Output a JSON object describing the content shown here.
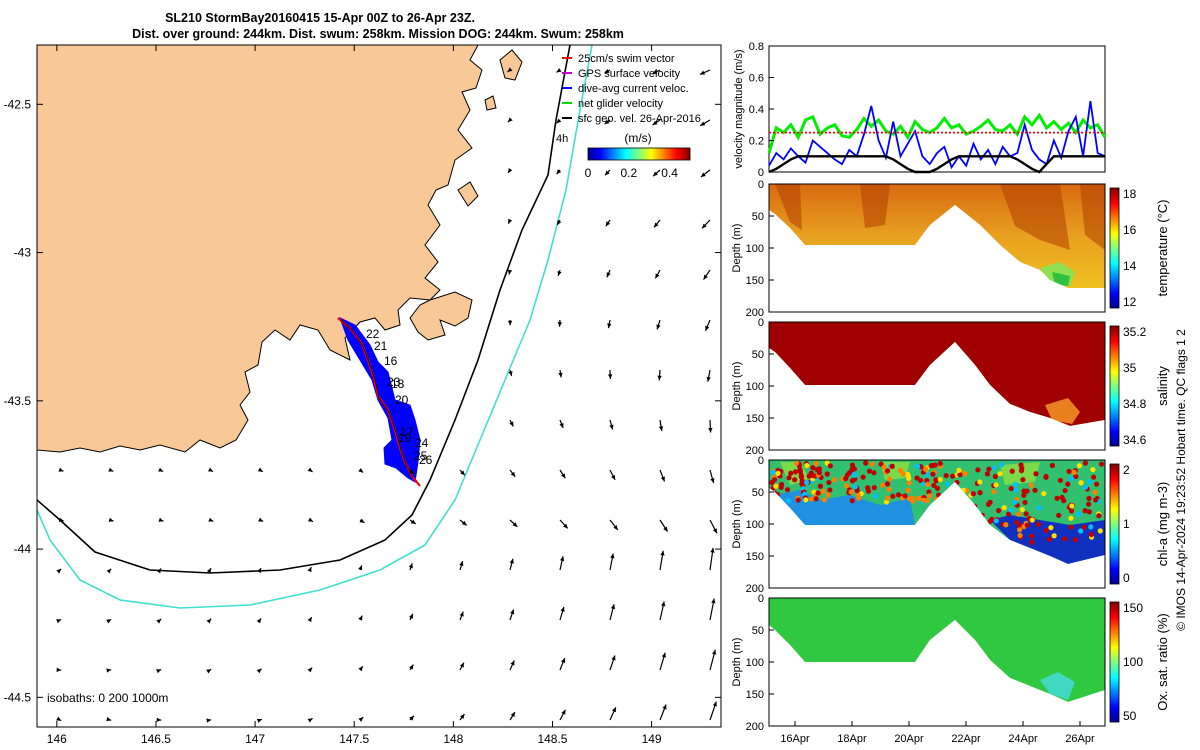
{
  "title": {
    "line1": "SL210 StormBay20160415 15-Apr 00Z to 26-Apr 23Z.",
    "line2": "Dist. over ground: 244km. Dist. swum: 258km. Mission DOG: 244km. Swum: 258km"
  },
  "map": {
    "x_ticks": [
      "146",
      "146.5",
      "147",
      "147.5",
      "148",
      "148.5",
      "149"
    ],
    "y_ticks": [
      "-42.5",
      "-43",
      "-43.5",
      "-44",
      "-44.5"
    ],
    "xlim": [
      145.9,
      149.35
    ],
    "ylim": [
      -44.6,
      -42.3
    ],
    "isobaths_label": "isobaths: 0   200  1000m",
    "legend": [
      {
        "label": "25cm/s swim vector",
        "color": "#ff0000"
      },
      {
        "label": "GPS surface velocity",
        "color": "#cc00cc"
      },
      {
        "label": "dive-avg current veloc.",
        "color": "#0000ff"
      },
      {
        "label": "net glider velocity",
        "color": "#00dd00"
      },
      {
        "label": "sfc geo. vel. 26-Apr-2016",
        "color": "#000000"
      }
    ],
    "hour_label": "4h",
    "colorbar": {
      "title": "(m/s)",
      "ticks": [
        "0",
        "0.2",
        "0.4"
      ],
      "range": [
        0,
        0.5
      ]
    },
    "day_labels": [
      "22",
      "21",
      "16",
      "23",
      "18",
      "20",
      "19",
      "17",
      "24",
      "25",
      "26"
    ],
    "colors": {
      "land": "#f9c897",
      "isobath_200": "#000000",
      "isobath_1000": "#40e0d0",
      "track": "#ff0000",
      "glider_band": "#0000ff"
    }
  },
  "chart_data": [
    {
      "type": "line",
      "ylabel": "velocity magnitude (m/s)",
      "ylim": [
        0,
        0.8
      ],
      "y_ticks": [
        "0",
        "0.2",
        "0.4",
        "0.6",
        "0.8"
      ],
      "series": [
        {
          "color": "#00ee00",
          "values": [
            0.12,
            0.28,
            0.25,
            0.3,
            0.22,
            0.33,
            0.35,
            0.24,
            0.28,
            0.3,
            0.23,
            0.22,
            0.27,
            0.34,
            0.29,
            0.33,
            0.26,
            0.24,
            0.29,
            0.22,
            0.32,
            0.27,
            0.25,
            0.28,
            0.34,
            0.28,
            0.3,
            0.24,
            0.26,
            0.29,
            0.33,
            0.27,
            0.26,
            0.3,
            0.24,
            0.35,
            0.3,
            0.36,
            0.28,
            0.32,
            0.27,
            0.31,
            0.25,
            0.33,
            0.28,
            0.3,
            0.22
          ]
        },
        {
          "color": "#0000ff",
          "values": [
            0.04,
            0.12,
            0.08,
            0.15,
            0.1,
            0.06,
            0.2,
            0.16,
            0.12,
            0.08,
            0.05,
            0.14,
            0.1,
            0.24,
            0.42,
            0.2,
            0.09,
            0.32,
            0.1,
            0.18,
            0.26,
            0.1,
            0.05,
            0.12,
            0.16,
            0.03,
            0.1,
            0.04,
            0.18,
            0.08,
            0.14,
            0.05,
            0.16,
            0.1,
            0.12,
            0.3,
            0.14,
            0.08,
            0.05,
            0.2,
            0.09,
            0.26,
            0.35,
            0.1,
            0.45,
            0.12,
            0.1
          ]
        },
        {
          "color": "#000000",
          "values": [
            0,
            0.02,
            0.05,
            0.08,
            0.1,
            0.1,
            0.1,
            0.1,
            0.1,
            0.1,
            0.1,
            0.1,
            0.1,
            0.1,
            0.1,
            0.1,
            0.1,
            0.08,
            0.05,
            0.02,
            0.0,
            0.0,
            0.0,
            0.02,
            0.05,
            0.08,
            0.1,
            0.1,
            0.1,
            0.1,
            0.1,
            0.1,
            0.1,
            0.1,
            0.08,
            0.05,
            0.02,
            0.0,
            0.05,
            0.1,
            0.1,
            0.1,
            0.1,
            0.1,
            0.1,
            0.1,
            0.1
          ]
        },
        {
          "color": "#ff0000",
          "values": [
            0.25,
            0.25,
            0.25,
            0.25,
            0.25,
            0.25,
            0.25,
            0.25,
            0.25,
            0.25,
            0.25,
            0.25,
            0.25,
            0.25,
            0.25,
            0.25,
            0.25,
            0.25,
            0.25,
            0.25,
            0.25,
            0.25,
            0.25,
            0.25,
            0.25,
            0.25,
            0.25,
            0.25,
            0.25,
            0.25,
            0.25,
            0.25,
            0.25,
            0.25,
            0.25,
            0.25,
            0.25,
            0.25,
            0.25,
            0.25,
            0.25,
            0.25,
            0.25,
            0.25,
            0.25,
            0.25,
            0.25
          ]
        }
      ]
    },
    {
      "type": "heatmap",
      "ylabel": "Depth (m)",
      "y_ticks": [
        "0",
        "50",
        "100",
        "150",
        "200"
      ],
      "clabel": "temperature (°C)",
      "cticks": [
        "12",
        "14",
        "16",
        "18"
      ]
    },
    {
      "type": "heatmap",
      "ylabel": "Depth (m)",
      "y_ticks": [
        "0",
        "50",
        "100",
        "150",
        "200"
      ],
      "clabel": "salinity",
      "cticks": [
        "34.6",
        "34.8",
        "35",
        "35.2"
      ]
    },
    {
      "type": "heatmap",
      "ylabel": "Depth (m)",
      "y_ticks": [
        "0",
        "50",
        "100",
        "150",
        "200"
      ],
      "clabel": "chl-a (mg m-3)",
      "cticks": [
        "0",
        "1",
        "2"
      ]
    },
    {
      "type": "heatmap",
      "ylabel": "Depth (m)",
      "y_ticks": [
        "0",
        "50",
        "100",
        "150",
        "200"
      ],
      "clabel": "Ox. sat. ratio (%)",
      "cticks": [
        "50",
        "100",
        "150"
      ]
    }
  ],
  "time_axis": {
    "ticks": [
      "16Apr",
      "18Apr",
      "20Apr",
      "22Apr",
      "24Apr",
      "26Apr"
    ]
  },
  "credit": "© IMOS 14-Apr-2024 19:23:52 Hobart time. QC flags 1  2"
}
